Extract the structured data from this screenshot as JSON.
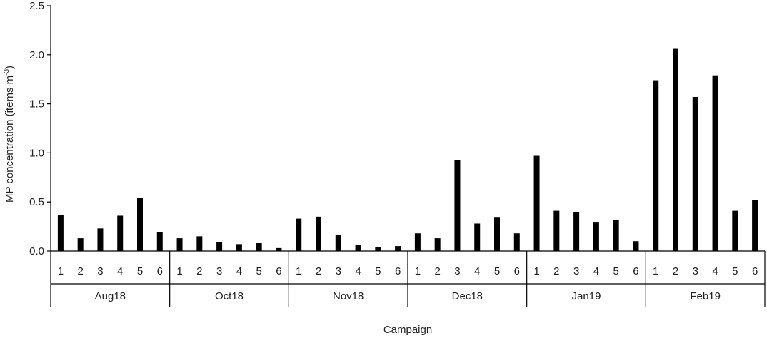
{
  "chart_data": {
    "type": "bar",
    "title": "",
    "xlabel": "Campaign",
    "ylabel": "MP concentration (items m⁻³)",
    "ylim": [
      0,
      2.5
    ],
    "yticks": [
      "0.0",
      "0.5",
      "1.0",
      "1.5",
      "2.0",
      "2.5"
    ],
    "grid": false,
    "legend": "none",
    "bar_color": "#000000",
    "groups": [
      {
        "name": "Aug18",
        "categories": [
          "1",
          "2",
          "3",
          "4",
          "5",
          "6"
        ],
        "values": [
          0.37,
          0.13,
          0.23,
          0.36,
          0.54,
          0.19
        ]
      },
      {
        "name": "Oct18",
        "categories": [
          "1",
          "2",
          "3",
          "4",
          "5",
          "6"
        ],
        "values": [
          0.13,
          0.15,
          0.09,
          0.07,
          0.08,
          0.03
        ]
      },
      {
        "name": "Nov18",
        "categories": [
          "1",
          "2",
          "3",
          "4",
          "5",
          "6"
        ],
        "values": [
          0.33,
          0.35,
          0.16,
          0.06,
          0.04,
          0.05
        ]
      },
      {
        "name": "Dec18",
        "categories": [
          "1",
          "2",
          "3",
          "4",
          "5",
          "6"
        ],
        "values": [
          0.18,
          0.13,
          0.93,
          0.28,
          0.34,
          0.18
        ]
      },
      {
        "name": "Jan19",
        "categories": [
          "1",
          "2",
          "3",
          "4",
          "5",
          "6"
        ],
        "values": [
          0.97,
          0.41,
          0.4,
          0.29,
          0.32,
          0.1
        ]
      },
      {
        "name": "Feb19",
        "categories": [
          "1",
          "2",
          "3",
          "4",
          "5",
          "6"
        ],
        "values": [
          1.74,
          2.06,
          1.57,
          1.79,
          0.41,
          0.52
        ]
      }
    ]
  }
}
